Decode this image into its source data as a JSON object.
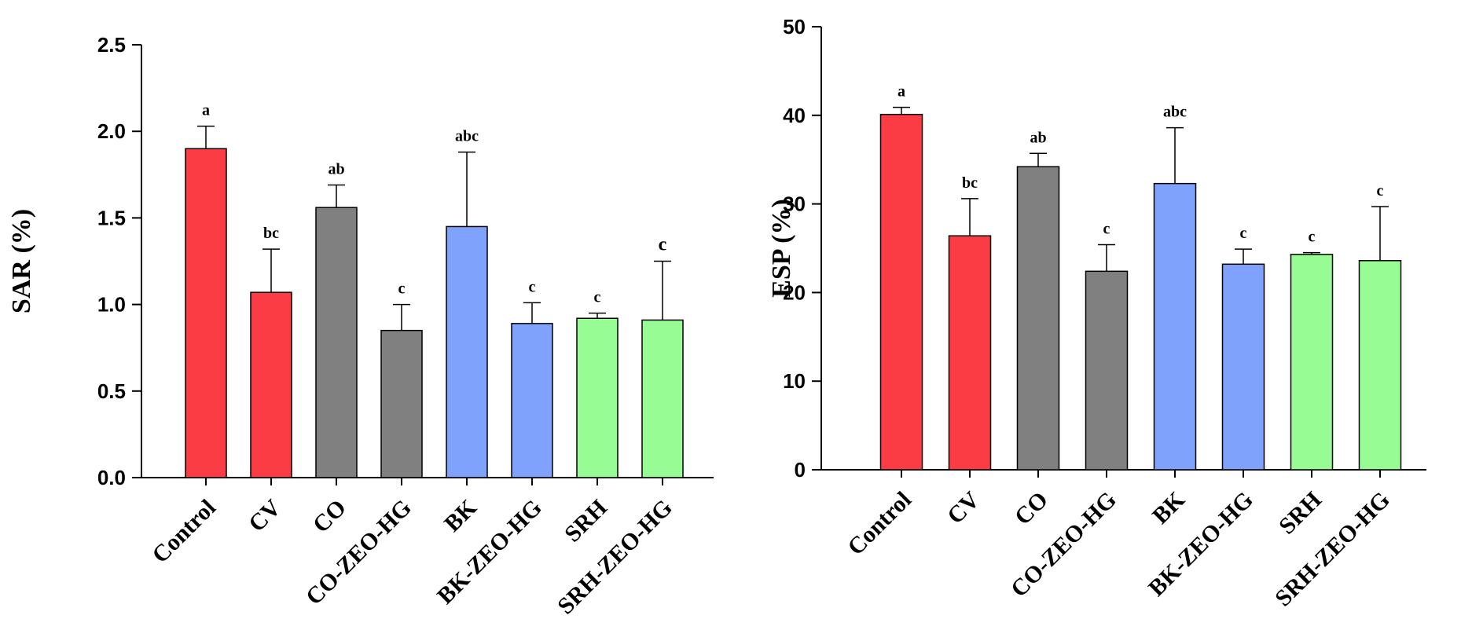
{
  "chart_data": [
    {
      "type": "bar",
      "title": "",
      "xlabel": "",
      "ylabel": "SAR (%)",
      "ylim": [
        0,
        2.5
      ],
      "yticks": [
        "0.0",
        "0.5",
        "1.0",
        "1.5",
        "2.0",
        "2.5"
      ],
      "categories": [
        "Control",
        "CV",
        "CO",
        "CO-ZEO-HG",
        "BK",
        "BK-ZEO-HG",
        "SRH",
        "SRH-ZEO-HG"
      ],
      "values": [
        1.9,
        1.07,
        1.56,
        0.85,
        1.45,
        0.89,
        0.92,
        0.91
      ],
      "errors": [
        0.13,
        0.25,
        0.13,
        0.15,
        0.43,
        0.12,
        0.03,
        0.34
      ],
      "significance": [
        "a",
        "bc",
        "ab",
        "c",
        "abc",
        "c",
        "c",
        "c"
      ],
      "colors": [
        "#fc3c44",
        "#fc3c44",
        "#808080",
        "#808080",
        "#7fa3fc",
        "#7fa3fc",
        "#97fc93",
        "#97fc93"
      ]
    },
    {
      "type": "bar",
      "title": "",
      "xlabel": "",
      "ylabel": "ESP (%)",
      "ylim": [
        0,
        50
      ],
      "yticks": [
        "0",
        "10",
        "20",
        "30",
        "40",
        "50"
      ],
      "categories": [
        "Control",
        "CV",
        "CO",
        "CO-ZEO-HG",
        "BK",
        "BK-ZEO-HG",
        "SRH",
        "SRH-ZEO-HG"
      ],
      "values": [
        40.1,
        26.4,
        34.2,
        22.4,
        32.3,
        23.2,
        24.3,
        23.6
      ],
      "errors": [
        0.8,
        4.2,
        1.5,
        3.0,
        6.3,
        1.7,
        0.2,
        6.1
      ],
      "significance": [
        "a",
        "bc",
        "ab",
        "c",
        "abc",
        "c",
        "c",
        "c"
      ],
      "colors": [
        "#fc3c44",
        "#fc3c44",
        "#808080",
        "#808080",
        "#7fa3fc",
        "#7fa3fc",
        "#97fc93",
        "#97fc93"
      ]
    }
  ]
}
